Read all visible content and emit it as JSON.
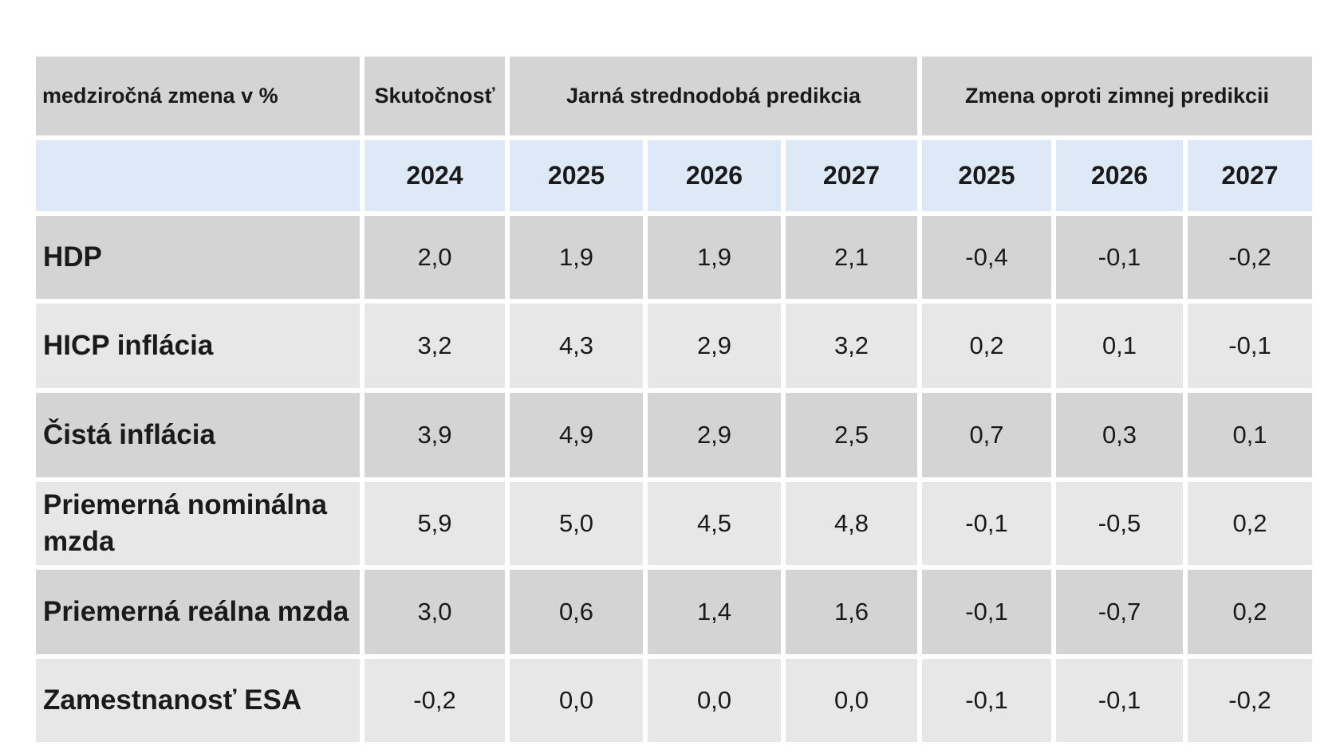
{
  "header": {
    "label": "medziročná zmena v %",
    "groups": [
      "Skutočnosť",
      "Jarná strednodobá predikcia",
      "Zmena oproti zimnej predikcii"
    ]
  },
  "years": [
    "2024",
    "2025",
    "2026",
    "2027",
    "2025",
    "2026",
    "2027"
  ],
  "rows": [
    {
      "label": "HDP",
      "values": [
        "2,0",
        "1,9",
        "1,9",
        "2,1",
        "-0,4",
        "-0,1",
        "-0,2"
      ]
    },
    {
      "label": "HICP inflácia",
      "values": [
        "3,2",
        "4,3",
        "2,9",
        "3,2",
        "0,2",
        "0,1",
        "-0,1"
      ]
    },
    {
      "label": "Čistá inflácia",
      "values": [
        "3,9",
        "4,9",
        "2,9",
        "2,5",
        "0,7",
        "0,3",
        "0,1"
      ]
    },
    {
      "label": "Priemerná nominálna mzda",
      "values": [
        "5,9",
        "5,0",
        "4,5",
        "4,8",
        "-0,1",
        "-0,5",
        "0,2"
      ]
    },
    {
      "label": "Priemerná reálna mzda",
      "values": [
        "3,0",
        "0,6",
        "1,4",
        "1,6",
        "-0,1",
        "-0,7",
        "0,2"
      ]
    },
    {
      "label": "Zamestnanosť ESA",
      "values": [
        "-0,2",
        "0,0",
        "0,0",
        "0,0",
        "-0,1",
        "-0,1",
        "-0,2"
      ]
    }
  ]
}
